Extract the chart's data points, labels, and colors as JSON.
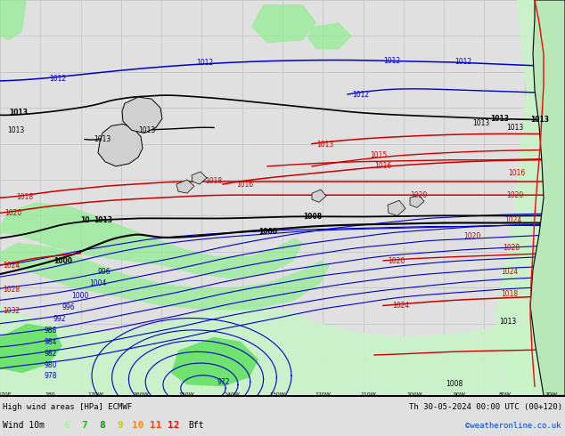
{
  "title_left": "High wind areas [HPa] ECMWF",
  "title_right": "Th 30-05-2024 00:00 UTC (00+120)",
  "subtitle_left": "Wind 10m",
  "legend_labels": [
    "6",
    "7",
    "8",
    "9",
    "10",
    "11",
    "12",
    "Bft"
  ],
  "legend_colors": [
    "#98fb98",
    "#00dd00",
    "#00aa00",
    "#dddd00",
    "#ffaa00",
    "#ff5500",
    "#ff0000",
    "#000000"
  ],
  "credit": "©weatheronline.co.uk",
  "bg_color": "#f0f0f0",
  "grid_color": "#c0c0c0",
  "figsize": [
    6.34,
    4.9
  ],
  "dpi": 100,
  "map_xlim": [
    0,
    634
  ],
  "map_ylim": [
    0,
    440
  ]
}
